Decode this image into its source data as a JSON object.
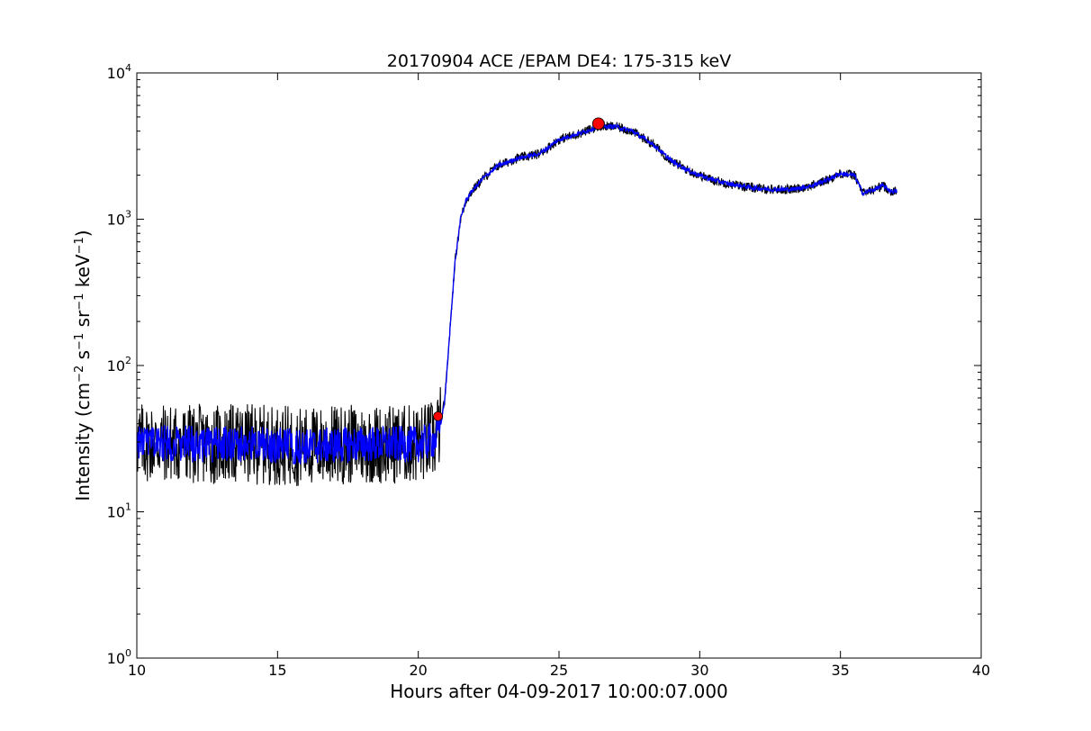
{
  "chart_data": {
    "type": "line",
    "title": "20170904 ACE /EPAM DE4: 175-315 keV",
    "xlabel": "Hours after 04-09-2017 10:00:07.000",
    "ylabel_parts": [
      "Intensity (cm",
      "−2",
      " s",
      "−1",
      " sr",
      "−1",
      " keV",
      "−1",
      ")"
    ],
    "xlim": [
      10,
      40
    ],
    "ylim": [
      1,
      10000
    ],
    "yscale": "log",
    "grid": false,
    "legend": "none",
    "x_ticks": [
      "10",
      "15",
      "20",
      "25",
      "30",
      "35",
      "40"
    ],
    "y_ticks": [
      {
        "base": "10",
        "exp": "0"
      },
      {
        "base": "10",
        "exp": "1"
      },
      {
        "base": "10",
        "exp": "2"
      },
      {
        "base": "10",
        "exp": "3"
      },
      {
        "base": "10",
        "exp": "4"
      }
    ],
    "series": [
      {
        "style": "raw",
        "color": "#000000",
        "noise": 0.55,
        "x": [
          10.0,
          12.0,
          14.0,
          16.0,
          18.0,
          20.0,
          20.6,
          20.8,
          20.95,
          21.1,
          21.3,
          21.5,
          21.7,
          21.9,
          22.3,
          22.8,
          23.5,
          24.3,
          25.0,
          25.8,
          26.4,
          27.0,
          27.6,
          28.3,
          29.0,
          29.7,
          30.3,
          31.0,
          31.8,
          32.5,
          33.3,
          34.0,
          34.5,
          35.0,
          35.5,
          35.8,
          36.2,
          36.5,
          36.8,
          37.0
        ],
        "y": [
          30,
          29,
          29,
          28,
          29,
          29,
          31,
          40,
          60,
          150,
          500,
          1000,
          1350,
          1550,
          1900,
          2300,
          2600,
          2800,
          3500,
          3900,
          4300,
          4300,
          4000,
          3300,
          2500,
          2100,
          1900,
          1750,
          1650,
          1600,
          1600,
          1700,
          1850,
          2050,
          2000,
          1500,
          1600,
          1700,
          1550,
          1550
        ]
      },
      {
        "style": "smoothed",
        "color": "#0000ff",
        "noise": 0.25,
        "x": [
          10.0,
          12.0,
          14.0,
          16.0,
          18.0,
          20.0,
          20.6,
          20.8,
          20.95,
          21.1,
          21.3,
          21.5,
          21.7,
          21.9,
          22.3,
          22.8,
          23.5,
          24.3,
          25.0,
          25.8,
          26.4,
          27.0,
          27.6,
          28.3,
          29.0,
          29.7,
          30.3,
          31.0,
          31.8,
          32.5,
          33.3,
          34.0,
          34.5,
          35.0,
          35.5,
          35.8,
          36.2,
          36.5,
          36.8,
          37.0
        ],
        "y": [
          30,
          29,
          29,
          28,
          29,
          29,
          31,
          40,
          60,
          150,
          500,
          1000,
          1350,
          1550,
          1900,
          2300,
          2600,
          2800,
          3500,
          3900,
          4300,
          4300,
          4000,
          3300,
          2500,
          2100,
          1900,
          1750,
          1650,
          1600,
          1600,
          1700,
          1850,
          2050,
          2000,
          1500,
          1600,
          1700,
          1550,
          1550
        ]
      }
    ],
    "markers": [
      {
        "type": "onset",
        "x": 20.7,
        "y": 45,
        "color": "#ff0000"
      },
      {
        "type": "peak",
        "x": 26.4,
        "y": 4500,
        "color": "#ff0000"
      }
    ]
  }
}
